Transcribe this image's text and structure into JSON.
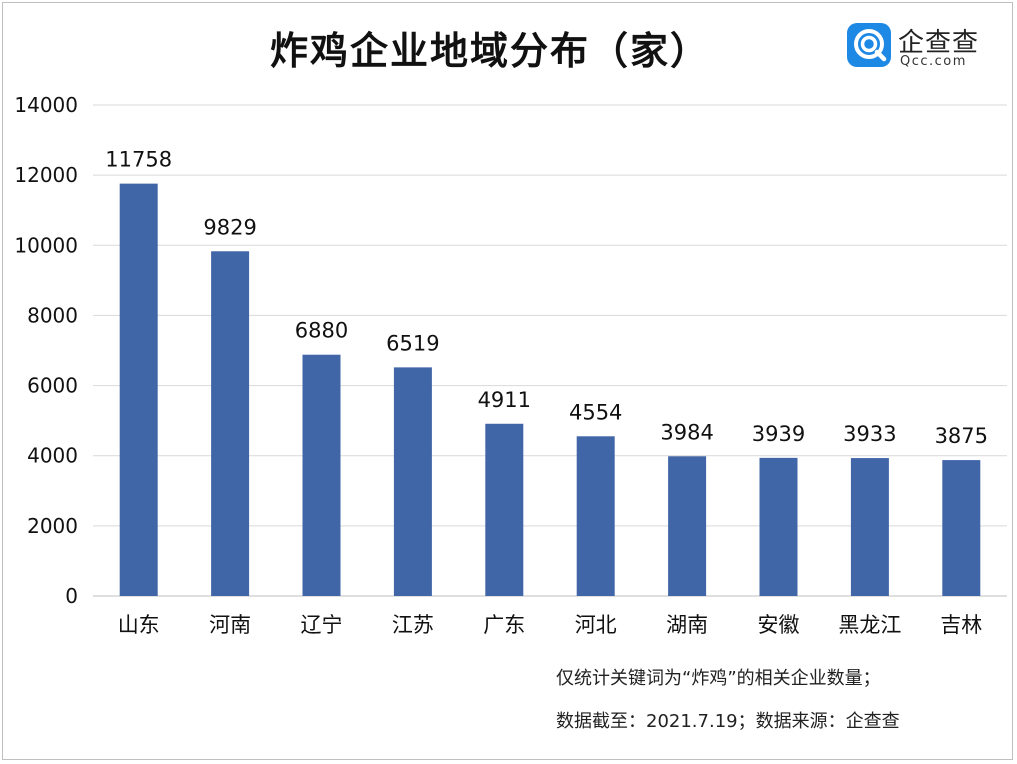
{
  "chart_data": {
    "type": "bar",
    "title": "炸鸡企业地域分布（家）",
    "categories": [
      "山东",
      "河南",
      "辽宁",
      "江苏",
      "广东",
      "河北",
      "湖南",
      "安徽",
      "黑龙江",
      "吉林"
    ],
    "values": [
      11758,
      9829,
      6880,
      6519,
      4911,
      4554,
      3984,
      3939,
      3933,
      3875
    ],
    "ylim": [
      0,
      14000
    ],
    "yticks": [
      "0",
      "2000",
      "4000",
      "6000",
      "8000",
      "10000",
      "12000",
      "14000"
    ],
    "xlabel": "",
    "ylabel": "",
    "grid": true,
    "legend": "none",
    "bar_color": "#4166a8",
    "data_labels": true
  },
  "footnotes": {
    "line1": "仅统计关键词为“炸鸡”的相关企业数量；",
    "line2": "数据截至：2021.7.19；数据来源：企查查"
  },
  "logo": {
    "name": "企查查",
    "domain": "Qcc.com",
    "icon": "qcc-logo-icon",
    "color": "#1e88e5"
  },
  "colors": {
    "gridline": "#d9d9d9",
    "axis": "#bfbfbf",
    "text": "#111111"
  }
}
